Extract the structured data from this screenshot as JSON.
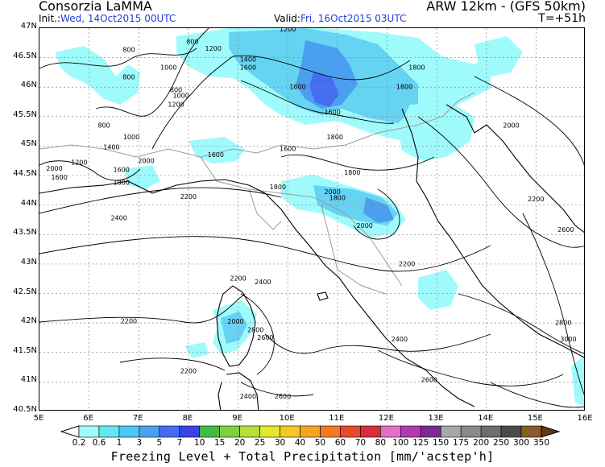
{
  "header": {
    "title_left": "Consorzia LaMMA",
    "title_right": "ARW 12km - (GFS 50km)",
    "init_label": "Init.:",
    "init_value": "Wed, 14Oct2015 00UTC",
    "valid_label": "Valid:",
    "valid_value": "Fri, 16Oct2015 03UTC",
    "t_offset": "T=+51h"
  },
  "axes": {
    "lat_labels": [
      "47N",
      "46.5N",
      "46N",
      "45.5N",
      "45N",
      "44.5N",
      "44N",
      "43.5N",
      "43N",
      "42.5N",
      "42N",
      "41.5N",
      "41N",
      "40.5N"
    ],
    "lon_labels": [
      "5E",
      "6E",
      "7E",
      "8E",
      "9E",
      "10E",
      "11E",
      "12E",
      "13E",
      "14E",
      "15E",
      "16E"
    ]
  },
  "contour_labels": [
    {
      "text": "1200",
      "lon": 10.0,
      "lat": 46.98
    },
    {
      "text": "800",
      "lon": 8.08,
      "lat": 46.77
    },
    {
      "text": "1200",
      "lon": 8.5,
      "lat": 46.65
    },
    {
      "text": "800",
      "lon": 6.8,
      "lat": 46.63
    },
    {
      "text": "1400",
      "lon": 9.2,
      "lat": 46.47
    },
    {
      "text": "1000",
      "lon": 7.6,
      "lat": 46.33
    },
    {
      "text": "1600",
      "lon": 9.2,
      "lat": 46.33
    },
    {
      "text": "800",
      "lon": 6.8,
      "lat": 46.17
    },
    {
      "text": "1800",
      "lon": 12.6,
      "lat": 46.33
    },
    {
      "text": "1800",
      "lon": 12.35,
      "lat": 46.0
    },
    {
      "text": "1600",
      "lon": 10.2,
      "lat": 46.0
    },
    {
      "text": "800",
      "lon": 7.75,
      "lat": 45.95
    },
    {
      "text": "1000",
      "lon": 7.85,
      "lat": 45.85
    },
    {
      "text": "1200",
      "lon": 7.75,
      "lat": 45.7
    },
    {
      "text": "1600",
      "lon": 10.9,
      "lat": 45.57
    },
    {
      "text": "800",
      "lon": 6.3,
      "lat": 45.35
    },
    {
      "text": "2000",
      "lon": 14.5,
      "lat": 45.35
    },
    {
      "text": "1000",
      "lon": 6.85,
      "lat": 45.15
    },
    {
      "text": "1800",
      "lon": 10.95,
      "lat": 45.15
    },
    {
      "text": "1400",
      "lon": 6.45,
      "lat": 44.98
    },
    {
      "text": "1600",
      "lon": 10.0,
      "lat": 44.95
    },
    {
      "text": "1600",
      "lon": 8.55,
      "lat": 44.85
    },
    {
      "text": "2000",
      "lon": 7.15,
      "lat": 44.75
    },
    {
      "text": "1200",
      "lon": 5.8,
      "lat": 44.72
    },
    {
      "text": "2000",
      "lon": 5.3,
      "lat": 44.62
    },
    {
      "text": "1600",
      "lon": 6.65,
      "lat": 44.6
    },
    {
      "text": "1800",
      "lon": 11.3,
      "lat": 44.55
    },
    {
      "text": "1600",
      "lon": 5.4,
      "lat": 44.47
    },
    {
      "text": "1800",
      "lon": 6.65,
      "lat": 44.38
    },
    {
      "text": "1800",
      "lon": 9.8,
      "lat": 44.3
    },
    {
      "text": "2000",
      "lon": 10.9,
      "lat": 44.22
    },
    {
      "text": "1800",
      "lon": 11.0,
      "lat": 44.12
    },
    {
      "text": "2200",
      "lon": 8.0,
      "lat": 44.14
    },
    {
      "text": "2200",
      "lon": 15.0,
      "lat": 44.1
    },
    {
      "text": "2400",
      "lon": 6.6,
      "lat": 43.78
    },
    {
      "text": "2000",
      "lon": 11.55,
      "lat": 43.65
    },
    {
      "text": "2600",
      "lon": 15.6,
      "lat": 43.58
    },
    {
      "text": "2200",
      "lon": 12.4,
      "lat": 43.0
    },
    {
      "text": "2200",
      "lon": 9.0,
      "lat": 42.75
    },
    {
      "text": "2400",
      "lon": 9.5,
      "lat": 42.69
    },
    {
      "text": "2200",
      "lon": 6.8,
      "lat": 42.03
    },
    {
      "text": "2000",
      "lon": 8.95,
      "lat": 42.02
    },
    {
      "text": "2800",
      "lon": 9.35,
      "lat": 41.88
    },
    {
      "text": "2600",
      "lon": 9.55,
      "lat": 41.75
    },
    {
      "text": "2800",
      "lon": 15.55,
      "lat": 42.0
    },
    {
      "text": "2400",
      "lon": 12.25,
      "lat": 41.72
    },
    {
      "text": "3000",
      "lon": 15.65,
      "lat": 41.72
    },
    {
      "text": "2200",
      "lon": 8.0,
      "lat": 41.18
    },
    {
      "text": "2600",
      "lon": 12.85,
      "lat": 41.03
    },
    {
      "text": "2400",
      "lon": 9.2,
      "lat": 40.75
    },
    {
      "text": "2600",
      "lon": 9.9,
      "lat": 40.75
    },
    {
      "text": "2200",
      "lon": 1000,
      "lat": 46.8
    }
  ],
  "legend": {
    "levels": [
      "0.2",
      "0.6",
      "1",
      "3",
      "5",
      "7",
      "10",
      "15",
      "20",
      "25",
      "30",
      "40",
      "50",
      "60",
      "70",
      "80",
      "100",
      "125",
      "150",
      "175",
      "200",
      "250",
      "300",
      "350"
    ],
    "colors": [
      "#ffffff",
      "#9ffbfb",
      "#66e5f3",
      "#4cc7f0",
      "#4a9ff0",
      "#456df0",
      "#3b42e6",
      "#45b845",
      "#7fcf3f",
      "#b6dd3a",
      "#e8e62e",
      "#f5c82a",
      "#f5a327",
      "#f07a25",
      "#e84a25",
      "#d52e3e",
      "#e070c8",
      "#b03aae",
      "#7a2c8e",
      "#a8a8a8",
      "#8a8a8a",
      "#6d6d6d",
      "#4a4a4a",
      "#8b5a2b",
      "#5c3a16"
    ]
  },
  "footer": "Freezing Level + Total Precipitation [mm/'acstep'h]",
  "map": {
    "precip_color_light": "#9ffbfb",
    "precip_color_mid": "#66d3f3",
    "precip_color_heavy": "#4a9ff0",
    "precip_color_max": "#456df0",
    "contour_color": "#000000",
    "border_color": "#9b9b9b",
    "grid_color": "#8a8a8a"
  }
}
